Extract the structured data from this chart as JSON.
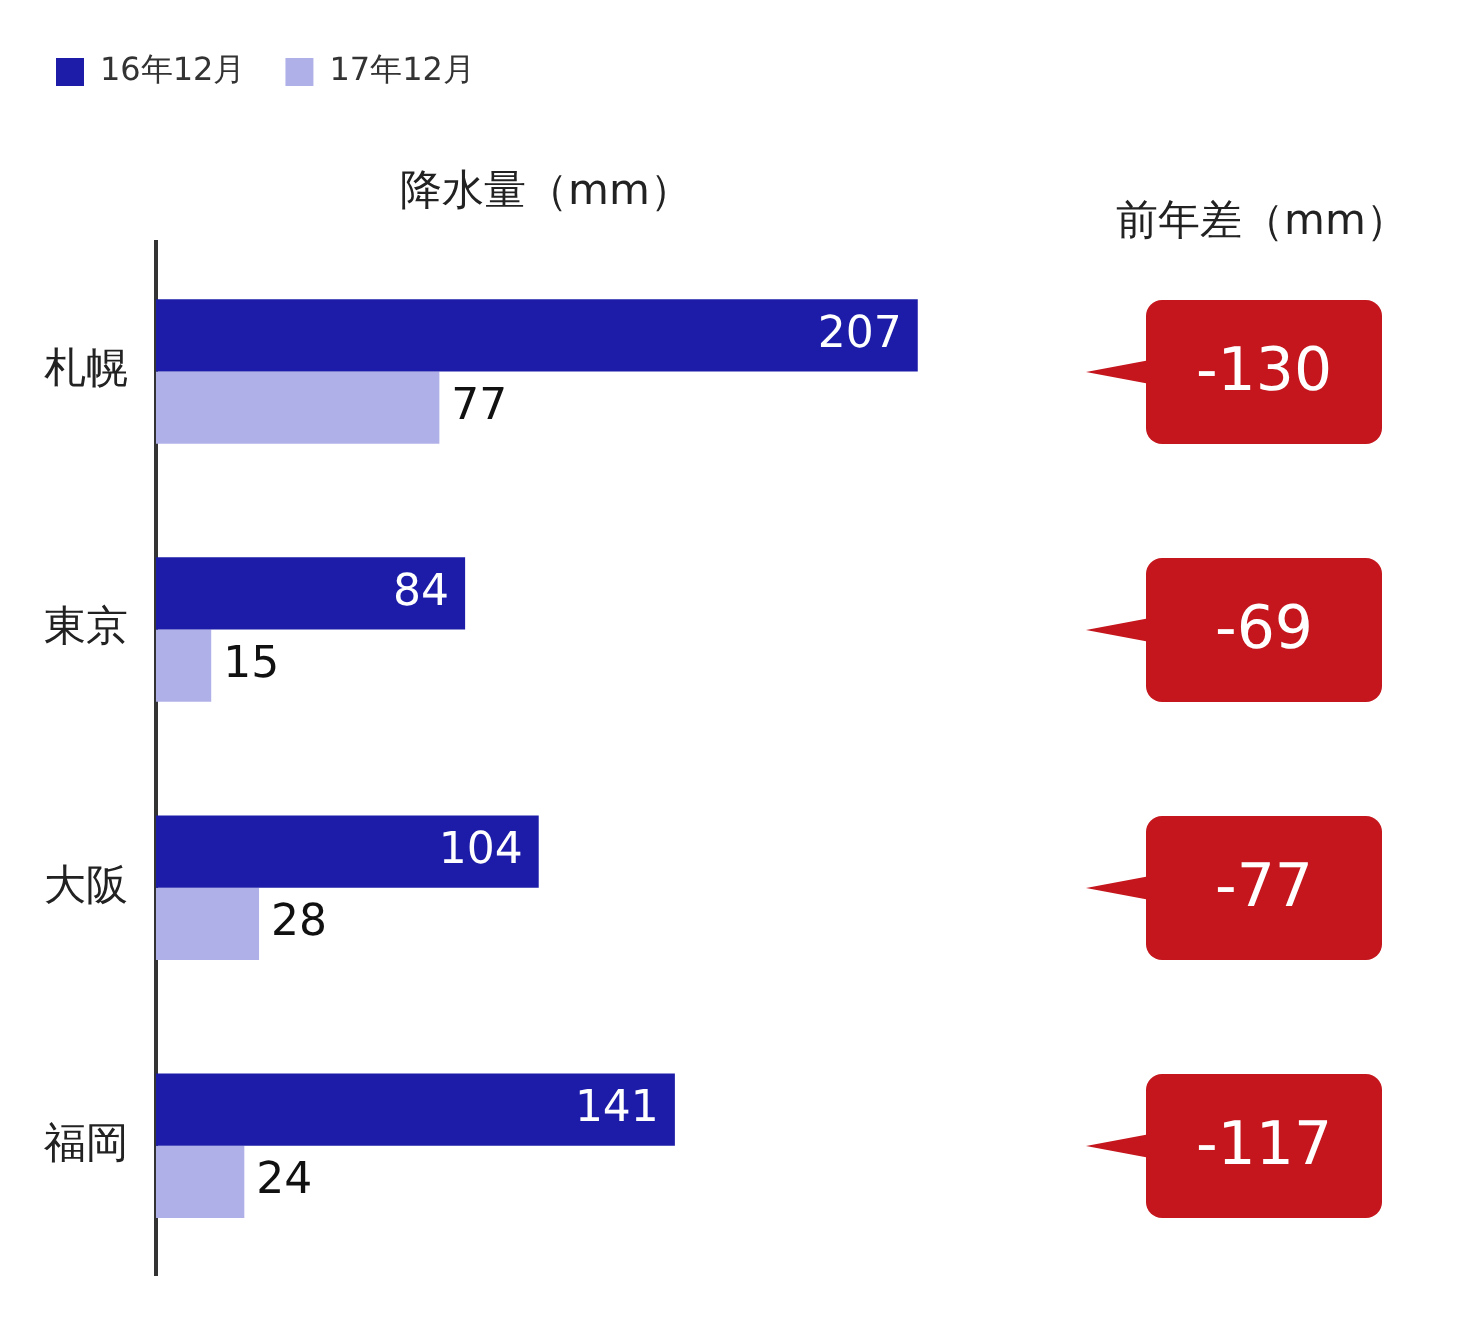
{
  "chart_data": {
    "type": "bar",
    "orientation": "horizontal",
    "title": "降水量（mm）",
    "categories": [
      "札幌",
      "東京",
      "大阪",
      "福岡"
    ],
    "series": [
      {
        "name": "16年12月",
        "color": "#1c1ca8",
        "values": [
          207,
          84,
          104,
          141
        ]
      },
      {
        "name": "17年12月",
        "color": "#b0b0e8",
        "values": [
          77,
          15,
          28,
          24
        ]
      }
    ],
    "data_labels": true,
    "legend": "top left",
    "grid": false,
    "annotations": [
      "前年差（mm）",
      "-130",
      "-69",
      "-77",
      "-117"
    ]
  }
}
